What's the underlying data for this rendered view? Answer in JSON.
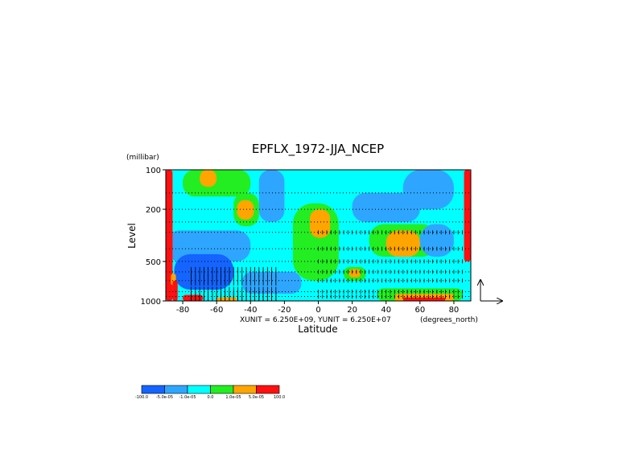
{
  "chart_data": {
    "type": "heatmap",
    "title": "EPFLX_1972-JJA_NCEP",
    "xlabel": "Latitude",
    "ylabel": "Level",
    "y_unit": "(millibar)",
    "x_unit": "(degrees_north)",
    "vector_units": "XUNIT = 6.250E+09, YUNIT = 6.250E+07",
    "xlim": [
      -90,
      90
    ],
    "ylim": [
      1000,
      100
    ],
    "y_scale": "log",
    "x_ticks": [
      -80,
      -60,
      -40,
      -20,
      0,
      20,
      40,
      60,
      80
    ],
    "x_tick_labels": [
      "-80",
      "-60",
      "-40",
      "-20",
      "0",
      "20",
      "40",
      "60",
      "80"
    ],
    "y_ticks": [
      1000,
      500,
      200,
      100
    ],
    "y_tick_labels": [
      "1000",
      "500",
      "200",
      "100"
    ],
    "grid_levels": [
      1000,
      925,
      850,
      700,
      600,
      500,
      400,
      300,
      250,
      200,
      150,
      100
    ],
    "colorbar": {
      "labels": [
        "-100.0",
        "-5.0e-05",
        "-1.0e-05",
        "0.0",
        "1.0e-05",
        "5.0e-05",
        "100.0"
      ],
      "colors": [
        "#1464ff",
        "#2ea6ff",
        "#00ffff",
        "#22ee22",
        "#ffa500",
        "#ff1010"
      ]
    },
    "field_regions": [
      {
        "lat": [
          -90,
          90
        ],
        "p": [
          100,
          1000
        ],
        "class": 2
      },
      {
        "lat": [
          -80,
          -40
        ],
        "p": [
          100,
          160
        ],
        "class": 3
      },
      {
        "lat": [
          -70,
          -60
        ],
        "p": [
          100,
          135
        ],
        "class": 4
      },
      {
        "lat": [
          -50,
          -35
        ],
        "p": [
          150,
          270
        ],
        "class": 3
      },
      {
        "lat": [
          -48,
          -38
        ],
        "p": [
          170,
          240
        ],
        "class": 4
      },
      {
        "lat": [
          -35,
          -20
        ],
        "p": [
          100,
          250
        ],
        "class": 1
      },
      {
        "lat": [
          -90,
          -40
        ],
        "p": [
          290,
          500
        ],
        "class": 1
      },
      {
        "lat": [
          -85,
          -50
        ],
        "p": [
          440,
          820
        ],
        "class": 0
      },
      {
        "lat": [
          -45,
          -10
        ],
        "p": [
          600,
          880
        ],
        "class": 1
      },
      {
        "lat": [
          -15,
          12
        ],
        "p": [
          180,
          700
        ],
        "class": 3
      },
      {
        "lat": [
          -5,
          7
        ],
        "p": [
          200,
          330
        ],
        "class": 4
      },
      {
        "lat": [
          20,
          60
        ],
        "p": [
          150,
          250
        ],
        "class": 1
      },
      {
        "lat": [
          50,
          80
        ],
        "p": [
          100,
          200
        ],
        "class": 1
      },
      {
        "lat": [
          30,
          70
        ],
        "p": [
          260,
          460
        ],
        "class": 3
      },
      {
        "lat": [
          40,
          60
        ],
        "p": [
          290,
          460
        ],
        "class": 4
      },
      {
        "lat": [
          60,
          80
        ],
        "p": [
          260,
          460
        ],
        "class": 1
      },
      {
        "lat": [
          15,
          28
        ],
        "p": [
          550,
          700
        ],
        "class": 3
      },
      {
        "lat": [
          18,
          25
        ],
        "p": [
          570,
          660
        ],
        "class": 4
      },
      {
        "lat": [
          35,
          85
        ],
        "p": [
          800,
          1000
        ],
        "class": 3
      },
      {
        "lat": [
          45,
          80
        ],
        "p": [
          880,
          1000
        ],
        "class": 4
      },
      {
        "lat": [
          50,
          75
        ],
        "p": [
          940,
          1000
        ],
        "class": 5
      },
      {
        "lat": [
          -80,
          -68
        ],
        "p": [
          900,
          1000
        ],
        "class": 5
      },
      {
        "lat": [
          -60,
          -48
        ],
        "p": [
          940,
          1000
        ],
        "class": 4
      },
      {
        "lat": [
          -90,
          -86
        ],
        "p": [
          100,
          1000
        ],
        "class": 5
      },
      {
        "lat": [
          86,
          90
        ],
        "p": [
          100,
          500
        ],
        "class": 5
      },
      {
        "lat": [
          -87,
          -84
        ],
        "p": [
          620,
          760
        ],
        "class": 4
      },
      {
        "lat": [
          -86,
          -83
        ],
        "p": [
          700,
          1000
        ],
        "class": 5
      }
    ],
    "vector_lat_range": [
      -75,
      -25
    ],
    "vector_lat_range_2": [
      0,
      85
    ],
    "grid": true,
    "legend": "bottom-left"
  }
}
